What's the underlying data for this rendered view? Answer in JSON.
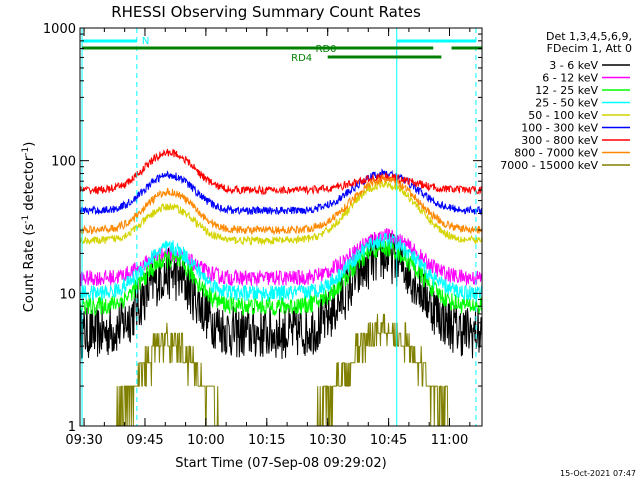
{
  "chart_data": {
    "type": "line",
    "title": "RHESSI Observing Summary Count Rates",
    "xlabel": "Start Time (07-Sep-08 09:29:02)",
    "ylabel_main": "Count Rate (s",
    "ylabel_sup1": "-1",
    "ylabel_mid": " detector",
    "ylabel_sup2": "-1",
    "ylabel_end": ")",
    "y_scale": "log",
    "ylim": [
      1,
      1000
    ],
    "xlim_minutes": [
      0,
      99
    ],
    "x_tick_labels": [
      {
        "t": 1,
        "label": "09:30"
      },
      {
        "t": 16,
        "label": "09:45"
      },
      {
        "t": 31,
        "label": "10:00"
      },
      {
        "t": 46,
        "label": "10:15"
      },
      {
        "t": 61,
        "label": "10:30"
      },
      {
        "t": 76,
        "label": "10:45"
      },
      {
        "t": 91,
        "label": "11:00"
      }
    ],
    "y_tick_labels": [
      {
        "v": 1,
        "label": "1"
      },
      {
        "v": 10,
        "label": "10"
      },
      {
        "v": 100,
        "label": "100"
      },
      {
        "v": 1000,
        "label": "1000"
      }
    ],
    "legend_header": [
      "Det 1,3,4,5,6,9,",
      "FDecim 1, Att 0"
    ],
    "legend_position": "right",
    "series": [
      {
        "name": "3 - 6 keV",
        "color": "#000000",
        "peak1": 14,
        "peak2": 19,
        "baseline": 5,
        "noise": 0.2
      },
      {
        "name": "6 - 12 keV",
        "color": "#ff00ff",
        "peak1": 20,
        "peak2": 27,
        "baseline": 13,
        "noise": 0.06
      },
      {
        "name": "12 - 25 keV",
        "color": "#00ff00",
        "peak1": 18,
        "peak2": 22,
        "baseline": 8,
        "noise": 0.07
      },
      {
        "name": "25 - 50 keV",
        "color": "#00ffff",
        "peak1": 22,
        "peak2": 25,
        "baseline": 10,
        "noise": 0.06
      },
      {
        "name": "50 - 100 keV",
        "color": "#d4d400",
        "peak1": 45,
        "peak2": 67,
        "baseline": 25,
        "noise": 0.03
      },
      {
        "name": "100 - 300 keV",
        "color": "#0000ff",
        "peak1": 78,
        "peak2": 80,
        "baseline": 42,
        "noise": 0.03
      },
      {
        "name": "300 - 800 keV",
        "color": "#ff0000",
        "peak1": 115,
        "peak2": 75,
        "baseline": 60,
        "noise": 0.03
      },
      {
        "name": "800 - 7000 keV",
        "color": "#ff8800",
        "peak1": 58,
        "peak2": 72,
        "baseline": 30,
        "noise": 0.03
      },
      {
        "name": "7000 - 15000 keV",
        "color": "#808000",
        "peak1": 4.5,
        "peak2": 5.5,
        "baseline": 1,
        "noise": 0.1
      }
    ],
    "peak_times_minutes": [
      22,
      75
    ],
    "annotations": {
      "N": "N",
      "RD0": "RD0",
      "RD4": "RD4"
    }
  },
  "footer_date": "15-Oct-2021 07:47"
}
